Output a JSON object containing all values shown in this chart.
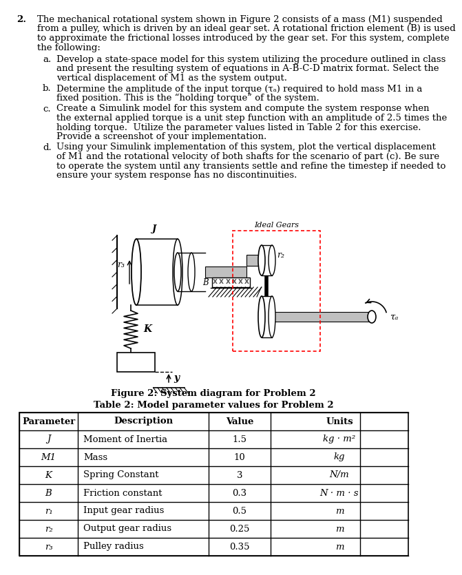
{
  "title_num": "2.",
  "bg_color": "#ffffff",
  "text_color": "#000000",
  "font_size": 9.5,
  "main_text_lines": [
    "The mechanical rotational system shown in Figure 2 consists of a mass (M1) suspended",
    "from a pulley, which is driven by an ideal gear set. A rotational friction element (B) is used",
    "to approximate the frictional losses introduced by the gear set. For this system, complete",
    "the following:"
  ],
  "item_a_lines": [
    "Develop a state-space model for this system utilizing the procedure outlined in class",
    "and present the resulting system of equations in A-B-C-D matrix format. Select the",
    "vertical displacement of M1 as the system output."
  ],
  "item_b_lines": [
    "Determine the amplitude of the input torque (τₐ) required to hold mass M1 in a",
    "fixed position. This is the “holding torque” of the system."
  ],
  "item_c_lines": [
    "Create a Simulink model for this system and compute the system response when",
    "the external applied torque is a unit step function with an amplitude of 2.5 times the",
    "holding torque.  Utilize the parameter values listed in Table 2 for this exercise.",
    "Provide a screenshot of your implementation."
  ],
  "item_d_lines": [
    "Using your Simulink implementation of this system, plot the vertical displacement",
    "of M1 and the rotational velocity of both shafts for the scenario of part (c). Be sure",
    "to operate the system until any transients settle and refine the timestep if needed to",
    "ensure your system response has no discontinuities."
  ],
  "figure_caption": "Figure 2: System diagram for Problem 2",
  "table_title": "Table 2: Model parameter values for Problem 2",
  "table_headers": [
    "Parameter",
    "Description",
    "Value",
    "Units"
  ],
  "table_rows": [
    [
      "J",
      "Moment of Inertia",
      "1.5",
      "kg · m²"
    ],
    [
      "M1",
      "Mass",
      "10",
      "kg"
    ],
    [
      "K",
      "Spring Constant",
      "3",
      "N/m"
    ],
    [
      "B",
      "Friction constant",
      "0.3",
      "N · m · s"
    ],
    [
      "r₁",
      "Input gear radius",
      "0.5",
      "m"
    ],
    [
      "r₂",
      "Output gear radius",
      "0.25",
      "m"
    ],
    [
      "r₃",
      "Pulley radius",
      "0.35",
      "m"
    ]
  ]
}
